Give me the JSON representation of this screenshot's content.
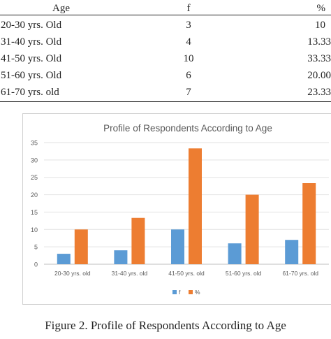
{
  "table": {
    "headers": [
      "Age",
      "f",
      "%"
    ],
    "rows": [
      [
        "20-30 yrs. Old",
        "3",
        "10"
      ],
      [
        "31-40 yrs. Old",
        "4",
        "13.33"
      ],
      [
        "41-50 yrs. Old",
        "10",
        "33.33"
      ],
      [
        "51-60 yrs. Old",
        "6",
        "20.00"
      ],
      [
        "61-70 yrs. old",
        "7",
        "23.33"
      ]
    ]
  },
  "chart_data": {
    "type": "bar",
    "title": "Profile of Respondents According to Age",
    "categories": [
      "20-30 yrs. old",
      "31-40 yrs. old",
      "41-50 yrs. old",
      "51-60 yrs. old",
      "61-70 yrs. old"
    ],
    "series": [
      {
        "name": "f",
        "values": [
          3,
          4,
          10,
          6,
          7
        ],
        "color": "#5b9bd5"
      },
      {
        "name": "%",
        "values": [
          10,
          13.33,
          33.33,
          20,
          23.33
        ],
        "color": "#ed7d31"
      }
    ],
    "ylim": [
      0,
      35
    ],
    "yticks": [
      "0",
      "5",
      "10",
      "15",
      "20",
      "25",
      "30",
      "35"
    ],
    "grid": true,
    "legend": "bottom"
  },
  "caption": "Figure 2. Profile of Respondents According to Age"
}
